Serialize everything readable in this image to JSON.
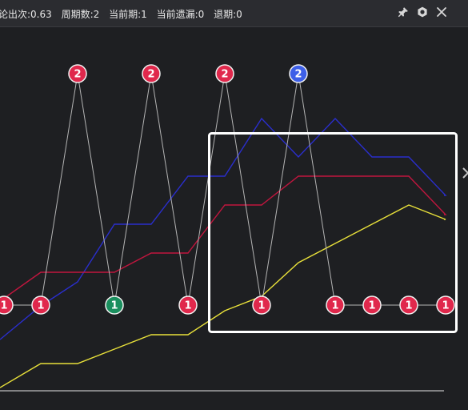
{
  "header": {
    "stats": [
      "论出次:0.63",
      "周期数:2",
      "当前期:1",
      "当前遗漏:0",
      "退期:0"
    ]
  },
  "toolbar": {
    "icons": [
      "pin-icon",
      "gear-icon",
      "close-icon"
    ]
  },
  "side": {
    "icon": "chevron-right-icon"
  },
  "colors": {
    "background": "#1e1f22",
    "header": "#2b2c30",
    "marker_red": "#e0284c",
    "marker_green": "#1a8f5e",
    "marker_blue": "#3d5fe8",
    "line_gray": "#b4b4b4",
    "line_blue": "#2a2ecc",
    "line_red": "#c0163e",
    "line_yellow": "#e8e03a",
    "baseline": "#e6e6e6",
    "highlight": "#ffffff"
  },
  "chart_data": {
    "type": "line",
    "periods": 13,
    "markers": [
      {
        "label": "1",
        "color": "red"
      },
      {
        "label": "1",
        "color": "red"
      },
      {
        "label": "2",
        "color": "red"
      },
      {
        "label": "1",
        "color": "green"
      },
      {
        "label": "2",
        "color": "red"
      },
      {
        "label": "1",
        "color": "red"
      },
      {
        "label": "2",
        "color": "red"
      },
      {
        "label": "1",
        "color": "red"
      },
      {
        "label": "2",
        "color": "blue"
      },
      {
        "label": "1",
        "color": "red"
      },
      {
        "label": "1",
        "color": "red"
      },
      {
        "label": "1",
        "color": "red"
      },
      {
        "label": "1",
        "color": "red"
      }
    ],
    "series": [
      {
        "color": "blue",
        "values": [
          10,
          17,
          22,
          34,
          34,
          44,
          44,
          56,
          48,
          56,
          48,
          48,
          40,
          40
        ]
      },
      {
        "color": "red",
        "values": [
          18,
          24,
          24,
          24,
          28,
          28,
          38,
          38,
          44,
          44,
          44,
          44,
          36,
          36
        ]
      },
      {
        "color": "yellow",
        "values": [
          0,
          5,
          5,
          8,
          11,
          11,
          16,
          19,
          26,
          30,
          34,
          38,
          35,
          35
        ]
      }
    ]
  }
}
